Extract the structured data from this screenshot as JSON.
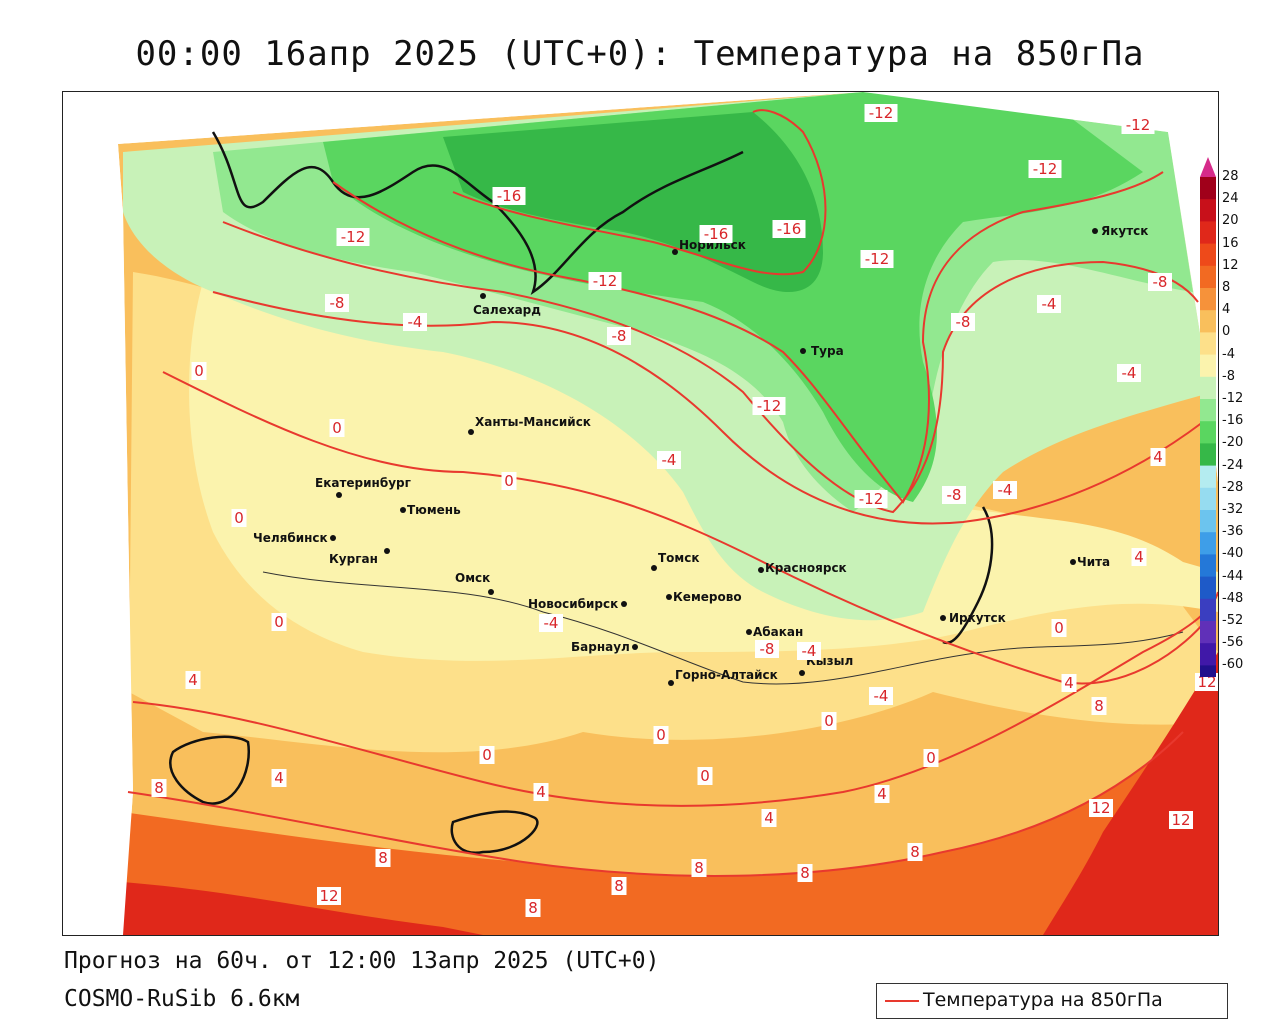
{
  "header": {
    "title": "00:00 16апр 2025 (UTC+0): Температура на 850гПа"
  },
  "footer": {
    "forecast": "Прогноз на 60ч. от 12:00 13апр 2025 (UTC+0)",
    "model": "COSMO-RuSib 6.6км"
  },
  "legend": {
    "label": "Температура на 850гПа",
    "line_color": "#e8392e"
  },
  "colorbar": {
    "labels": [
      "28",
      "24",
      "20",
      "16",
      "12",
      "8",
      "4",
      "0",
      "-4",
      "-8",
      "-12",
      "-16",
      "-20",
      "-24",
      "-28",
      "-32",
      "-36",
      "-40",
      "-44",
      "-48",
      "-52",
      "-56",
      "-60"
    ],
    "colors": [
      "#a0001a",
      "#c8101a",
      "#e0281a",
      "#ee4a1a",
      "#f26a22",
      "#f6923a",
      "#f9bf5c",
      "#fde08a",
      "#fbf3ad",
      "#c8f2b8",
      "#92e890",
      "#5ad660",
      "#36b848",
      "#b4ecf0",
      "#96dcf0",
      "#6cc4ee",
      "#3e9ee8",
      "#2478d8",
      "#1e5ac8",
      "#3a3ec0",
      "#6030b8",
      "#4018a8",
      "#20108c"
    ],
    "top_arrow_color": "#d62b8a",
    "bottom_arrow_color": "#1a0a80"
  },
  "cities": [
    {
      "name": "Якутск"
    },
    {
      "name": "Норильск"
    },
    {
      "name": "Салехард"
    },
    {
      "name": "Тура"
    },
    {
      "name": "Ханты-Мансийск"
    },
    {
      "name": "Екатеринбург"
    },
    {
      "name": "Тюмень"
    },
    {
      "name": "Челябинск"
    },
    {
      "name": "Курган"
    },
    {
      "name": "Омск"
    },
    {
      "name": "Томск"
    },
    {
      "name": "Новосибирск"
    },
    {
      "name": "Кемерово"
    },
    {
      "name": "Красноярск"
    },
    {
      "name": "Барнаул"
    },
    {
      "name": "Абакан"
    },
    {
      "name": "Горно-Алтайск"
    },
    {
      "name": "Кызыл"
    },
    {
      "name": "Иркутск"
    },
    {
      "name": "Чита"
    }
  ],
  "isotherm_labels": [
    "-12",
    "-12",
    "-12",
    "-16",
    "-16",
    "-16",
    "-12",
    "-12",
    "-12",
    "-8",
    "-8",
    "-8",
    "-4",
    "-4",
    "-4",
    "-8",
    "-12",
    "-12",
    "-4",
    "-8",
    "-4",
    "-4",
    "-4",
    "-8",
    "-4",
    "0",
    "0",
    "0",
    "0",
    "0",
    "0",
    "0",
    "0",
    "0",
    "0",
    "0",
    "4",
    "4",
    "4",
    "4",
    "4",
    "4",
    "4",
    "4",
    "8",
    "8",
    "8",
    "8",
    "8",
    "8",
    "8",
    "8",
    "12",
    "12",
    "12",
    "12"
  ]
}
